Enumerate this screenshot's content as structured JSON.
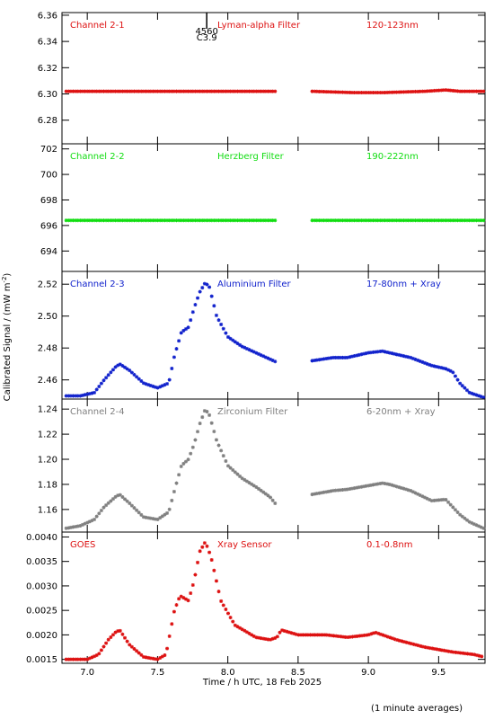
{
  "chart_data": [
    {
      "type": "scatter",
      "labels": [
        "Channel 2-1",
        "Lyman-alpha Filter",
        "120-123nm"
      ],
      "color": "#dd1111",
      "ylim": [
        6.262,
        6.362
      ],
      "yticks": [
        "6.28",
        "6.30",
        "6.32",
        "6.34",
        "6.36"
      ],
      "annotation": {
        "x": 7.85,
        "top": "4560",
        "bottom": "C3.9"
      },
      "series": [
        {
          "x": [
            6.85,
            8.35
          ],
          "y": [
            6.302,
            6.302
          ]
        },
        {
          "x": [
            8.6,
            8.9,
            9.1,
            9.4,
            9.55,
            9.65,
            9.82
          ],
          "y": [
            6.302,
            6.301,
            6.301,
            6.302,
            6.303,
            6.302,
            6.302
          ]
        }
      ]
    },
    {
      "type": "scatter",
      "labels": [
        "Channel 2-2",
        "Herzberg Filter",
        "190-222nm"
      ],
      "color": "#11dd11",
      "ylim": [
        692.4,
        702.4
      ],
      "yticks": [
        "694",
        "696",
        "698",
        "700",
        "702"
      ],
      "series": [
        {
          "x": [
            6.85,
            8.35
          ],
          "y": [
            696.4,
            696.4
          ]
        },
        {
          "x": [
            8.6,
            9.82
          ],
          "y": [
            696.4,
            696.4
          ]
        }
      ]
    },
    {
      "type": "scatter",
      "labels": [
        "Channel 2-3",
        "Aluminium Filter",
        "17-80nm + Xray"
      ],
      "color": "#1122cc",
      "ylim": [
        2.448,
        2.528
      ],
      "yticks": [
        "2.46",
        "2.48",
        "2.50",
        "2.52"
      ],
      "series": [
        {
          "x": [
            6.85,
            6.95,
            7.05,
            7.12,
            7.2,
            7.23,
            7.3,
            7.4,
            7.5,
            7.58,
            7.62,
            7.67,
            7.72,
            7.76,
            7.8,
            7.84,
            7.87,
            7.92,
            8.0,
            8.1,
            8.2,
            8.3,
            8.35
          ],
          "y": [
            2.45,
            2.45,
            2.452,
            2.46,
            2.468,
            2.47,
            2.466,
            2.458,
            2.455,
            2.458,
            2.475,
            2.49,
            2.493,
            2.505,
            2.515,
            2.521,
            2.518,
            2.5,
            2.487,
            2.481,
            2.477,
            2.473,
            2.471
          ]
        },
        {
          "x": [
            8.6,
            8.75,
            8.85,
            9.0,
            9.1,
            9.15,
            9.3,
            9.45,
            9.55,
            9.6,
            9.65,
            9.72,
            9.82
          ],
          "y": [
            2.472,
            2.474,
            2.474,
            2.477,
            2.478,
            2.477,
            2.474,
            2.469,
            2.467,
            2.465,
            2.458,
            2.452,
            2.449
          ]
        }
      ]
    },
    {
      "type": "scatter",
      "labels": [
        "Channel 2-4",
        "Zirconium Filter",
        "6-20nm + Xray"
      ],
      "color": "#808080",
      "ylim": [
        1.142,
        1.248
      ],
      "yticks": [
        "1.16",
        "1.18",
        "1.20",
        "1.22",
        "1.24"
      ],
      "series": [
        {
          "x": [
            6.85,
            6.95,
            7.05,
            7.12,
            7.2,
            7.23,
            7.3,
            7.4,
            7.5,
            7.58,
            7.62,
            7.67,
            7.72,
            7.76,
            7.8,
            7.84,
            7.87,
            7.92,
            8.0,
            8.1,
            8.2,
            8.3,
            8.35
          ],
          "y": [
            1.145,
            1.147,
            1.152,
            1.162,
            1.17,
            1.172,
            1.165,
            1.154,
            1.152,
            1.158,
            1.175,
            1.195,
            1.2,
            1.212,
            1.228,
            1.24,
            1.235,
            1.215,
            1.195,
            1.185,
            1.178,
            1.17,
            1.163
          ]
        },
        {
          "x": [
            8.6,
            8.75,
            8.85,
            9.0,
            9.1,
            9.15,
            9.3,
            9.45,
            9.55,
            9.6,
            9.65,
            9.72,
            9.82
          ],
          "y": [
            1.172,
            1.175,
            1.176,
            1.179,
            1.181,
            1.18,
            1.175,
            1.167,
            1.168,
            1.162,
            1.156,
            1.15,
            1.145
          ]
        }
      ]
    },
    {
      "type": "scatter",
      "labels": [
        "GOES",
        "Xray Sensor",
        "0.1-0.8nm"
      ],
      "color": "#dd1111",
      "ylim": [
        0.00142,
        0.0041
      ],
      "yticks": [
        "0.0015",
        "0.0020",
        "0.0025",
        "0.0030",
        "0.0035",
        "0.0040"
      ],
      "series": [
        {
          "x": [
            6.85,
            7.0,
            7.08,
            7.15,
            7.2,
            7.23,
            7.3,
            7.4,
            7.5,
            7.56,
            7.62,
            7.66,
            7.72,
            7.76,
            7.8,
            7.84,
            7.88,
            7.95,
            8.05,
            8.2,
            8.3,
            8.35,
            8.38,
            8.5,
            8.7,
            8.85,
            9.0,
            9.05,
            9.2,
            9.4,
            9.6,
            9.75,
            9.82
          ],
          "y": [
            0.0015,
            0.0015,
            0.0016,
            0.0019,
            0.00205,
            0.0021,
            0.0018,
            0.00155,
            0.0015,
            0.0016,
            0.0025,
            0.0028,
            0.0027,
            0.0031,
            0.0037,
            0.0039,
            0.0036,
            0.0027,
            0.0022,
            0.00195,
            0.0019,
            0.00195,
            0.0021,
            0.002,
            0.002,
            0.00195,
            0.002,
            0.00205,
            0.0019,
            0.00175,
            0.00165,
            0.0016,
            0.00155
          ]
        }
      ]
    }
  ],
  "x_axis": {
    "min": 6.82,
    "max": 9.83,
    "ticks": [
      "7.0",
      "7.5",
      "8.0",
      "8.5",
      "9.0",
      "9.5"
    ],
    "label": "Time / h UTC, 18 Feb 2025"
  },
  "y_axis_label": "Calibrated Signal / (mW m",
  "y_axis_label_sup": "-2",
  "y_axis_label_end": ")",
  "footnote": "(1 minute averages)"
}
